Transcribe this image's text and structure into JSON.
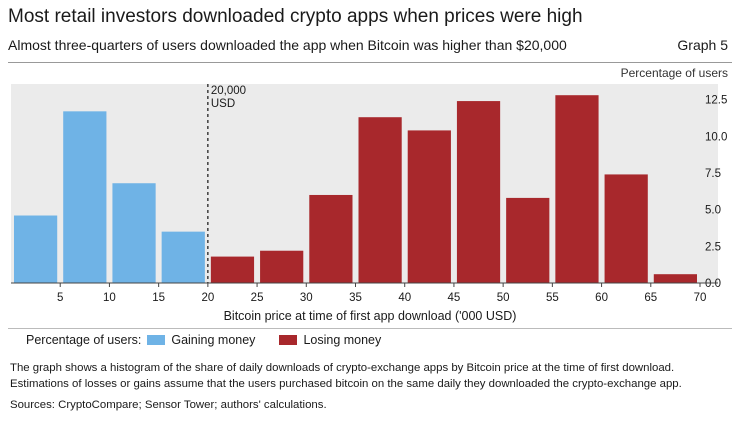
{
  "header": {
    "title": "Most retail investors downloaded crypto apps when prices were high",
    "subtitle": "Almost three-quarters of users downloaded the app when Bitcoin was higher than $20,000",
    "graph_number": "Graph 5",
    "unit": "Percentage of users"
  },
  "chart_data": {
    "type": "bar",
    "title": "Most retail investors downloaded crypto apps when prices were high",
    "xlabel": "Bitcoin price at time of first app download ('000 USD)",
    "ylabel": "Percentage of users",
    "ylim": [
      0,
      14
    ],
    "yticks": [
      0.0,
      2.5,
      5.0,
      7.5,
      10.0,
      12.5
    ],
    "ytick_labels": [
      "0.0",
      "2.5",
      "5.0",
      "7.5",
      "10.0",
      "12.5"
    ],
    "xticks": [
      5,
      10,
      15,
      20,
      25,
      30,
      35,
      40,
      45,
      50,
      55,
      60,
      65,
      70
    ],
    "xlim": [
      0,
      72
    ],
    "bin_width": 5,
    "series": [
      {
        "name": "Gaining money",
        "color": "#6fb3e6",
        "bin_starts": [
          0,
          5,
          10,
          15
        ],
        "values": [
          4.6,
          11.7,
          6.8,
          3.5
        ]
      },
      {
        "name": "Losing money",
        "color": "#a8282c",
        "bin_starts": [
          20,
          25,
          30,
          35,
          40,
          45,
          50,
          55,
          60,
          65
        ],
        "values": [
          1.8,
          2.2,
          6.0,
          11.3,
          10.4,
          12.4,
          5.8,
          12.8,
          7.4,
          0.6
        ]
      }
    ],
    "reference_line": {
      "x": 20,
      "label_line1": "20,000",
      "label_line2": "USD"
    },
    "grid": false,
    "background": "#ebebeb"
  },
  "legend": {
    "prefix": "Percentage of users:",
    "items": [
      {
        "label": "Gaining money",
        "color": "#6fb3e6"
      },
      {
        "label": "Losing money",
        "color": "#a8282c"
      }
    ]
  },
  "footer": {
    "note": "The graph shows a histogram of the share of daily downloads of crypto-exchange apps by Bitcoin price at the time of first download. Estimations of losses or gains assume that the users purchased bitcoin on the same daily they downloaded the crypto-exchange app.",
    "sources": "Sources: CryptoCompare; Sensor Tower; authors' calculations."
  }
}
